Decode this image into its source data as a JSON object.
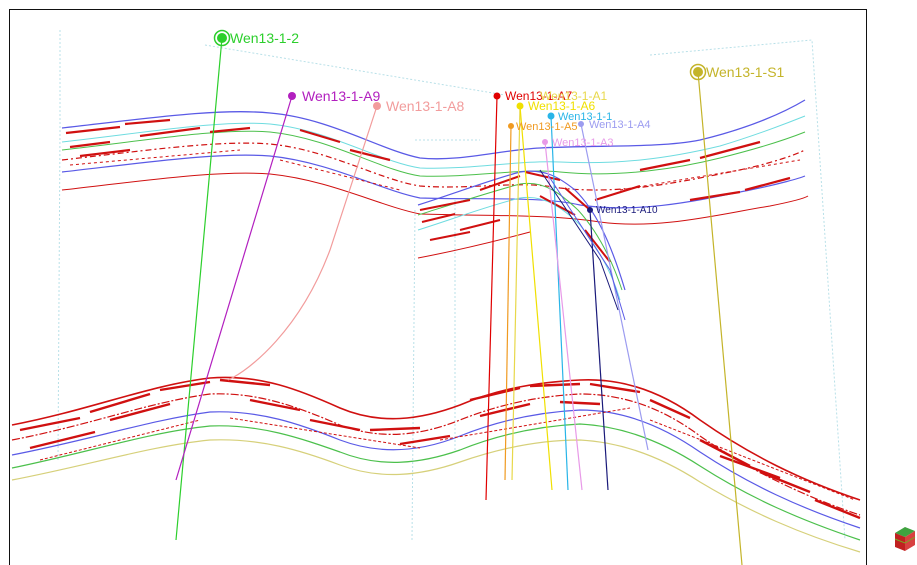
{
  "view": {
    "colors": {
      "background": "#ffffff",
      "frame": "#111111",
      "horizon_red": "#d01010",
      "horizon_blue": "#5a5ae6",
      "horizon_green": "#4cc04c",
      "horizon_cyan": "#6fdce0",
      "horizon_yellow": "#d6d07a",
      "section_border": "#b8e0e8"
    },
    "orientation_icon": "orientation-cube-icon"
  },
  "wells": [
    {
      "name": "Wen13-1-2",
      "color": "#2ccf2c",
      "label_size": 14
    },
    {
      "name": "Wen13-1-S1",
      "color": "#c4b42a",
      "label_size": 14
    },
    {
      "name": "Wen13-1-A9",
      "color": "#b21fbf",
      "label_size": 14
    },
    {
      "name": "Wen13-1-A8",
      "color": "#f29c9c",
      "label_size": 14
    },
    {
      "name": "Wen13-1-A7",
      "color": "#e00000",
      "label_size": 12
    },
    {
      "name": "Wen13-1-A1",
      "color": "#e8d84a",
      "label_size": 12
    },
    {
      "name": "Wen13-1-A6",
      "color": "#f0e000",
      "label_size": 12
    },
    {
      "name": "Wen13-1-1",
      "color": "#29b5e8",
      "label_size": 11
    },
    {
      "name": "Wen13-1-A4",
      "color": "#9c9cf0",
      "label_size": 11
    },
    {
      "name": "Wen13-1-A5",
      "color": "#f09a20",
      "label_size": 11
    },
    {
      "name": "Wen13-1-A3",
      "color": "#e89ae8",
      "label_size": 11
    },
    {
      "name": "Wen13-1-A10",
      "color": "#1a1a7a",
      "label_size": 10
    }
  ]
}
